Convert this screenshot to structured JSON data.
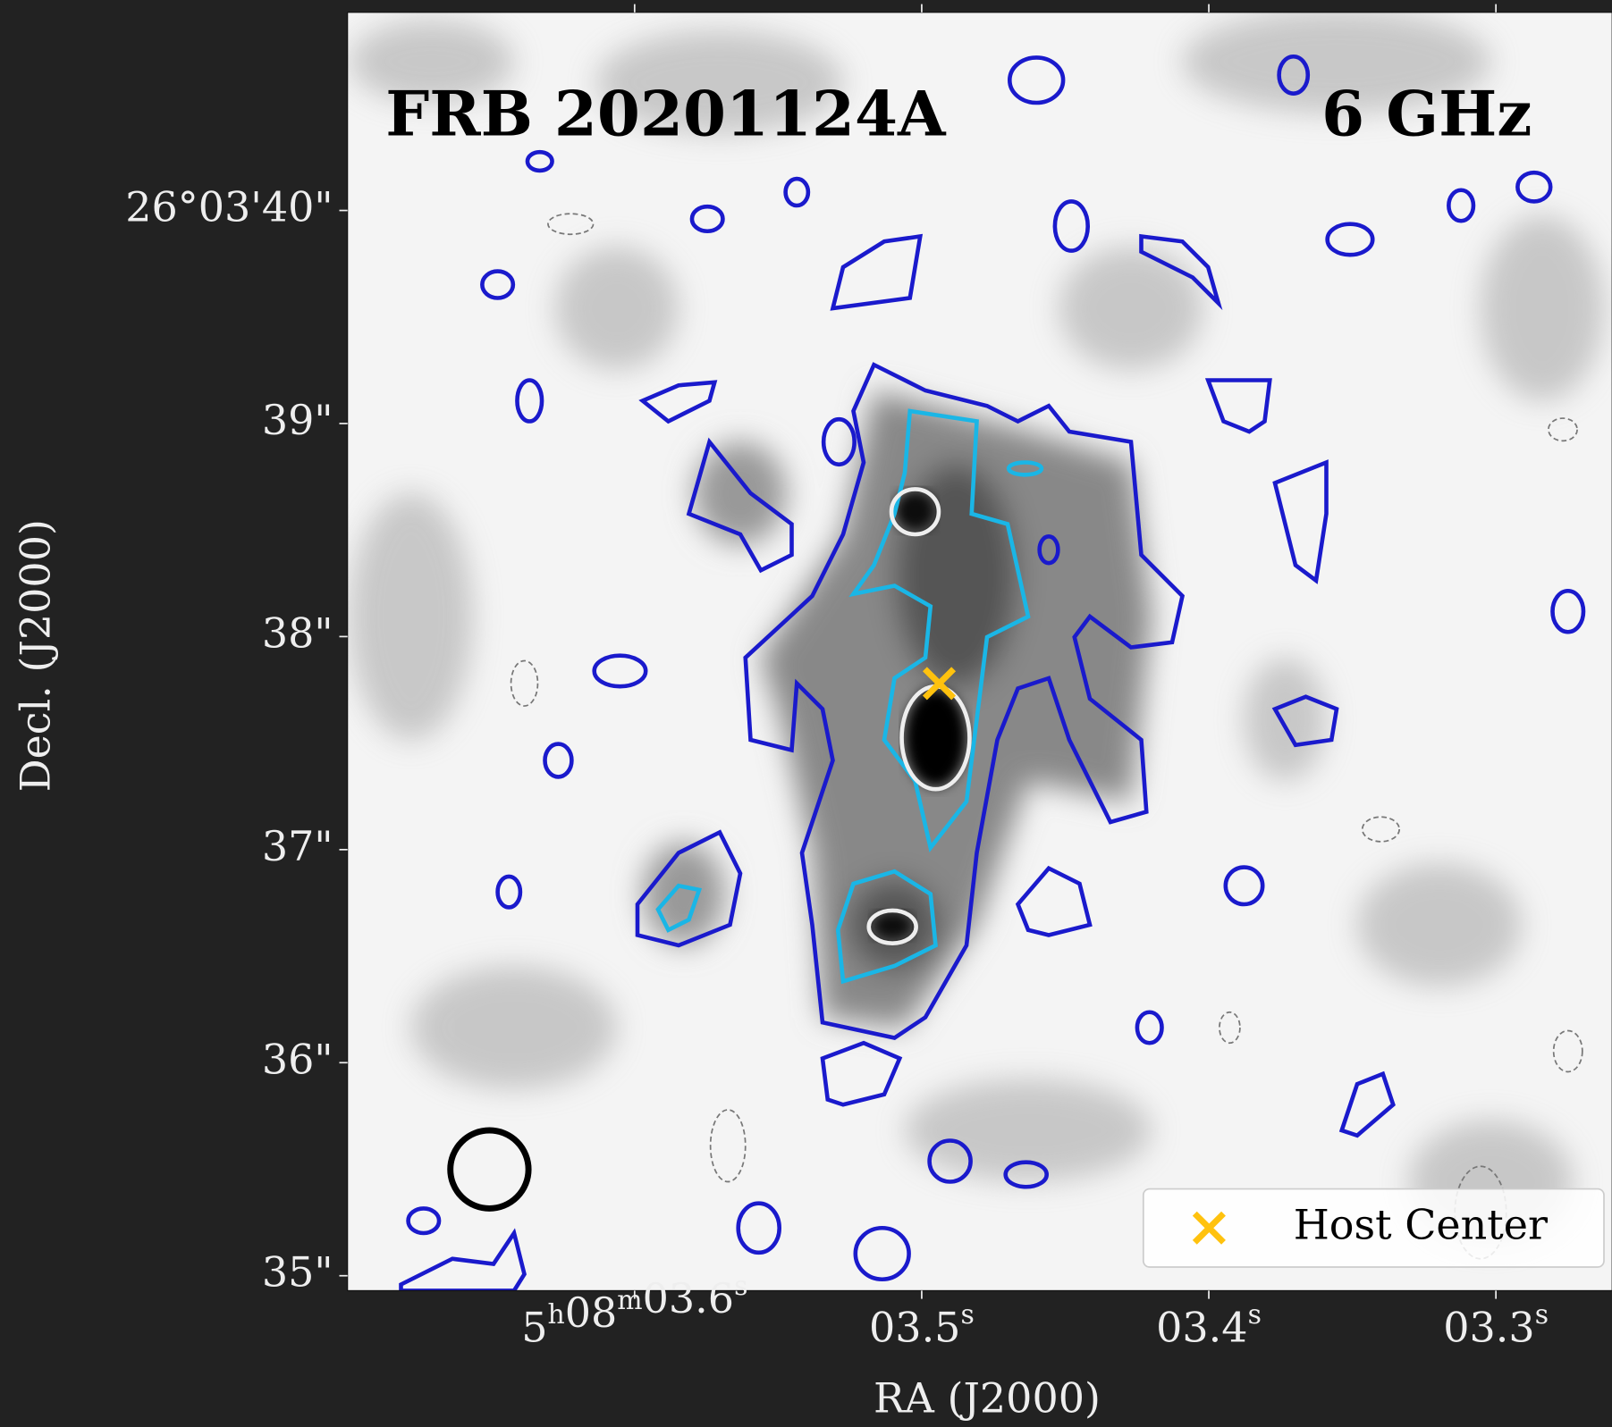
{
  "chart_data": {
    "type": "image",
    "title": "FRB 20201124A",
    "annotation": "6 GHz",
    "xlabel": "RA (J2000)",
    "ylabel": "Decl. (J2000)",
    "xlim": [
      3.7,
      3.2595
    ],
    "ylim": [
      34.93,
      40.93
    ],
    "xticks": [
      {
        "value": 3.6,
        "label": "5h08m03.6s"
      },
      {
        "value": 3.5,
        "label": "03.5s"
      },
      {
        "value": 3.4,
        "label": "03.4s"
      },
      {
        "value": 3.3,
        "label": "03.3s"
      }
    ],
    "yticks": [
      {
        "value": 40,
        "label": "26°03'40\""
      },
      {
        "value": 39,
        "label": "39\""
      },
      {
        "value": 38,
        "label": "38\""
      },
      {
        "value": 37,
        "label": "37\""
      },
      {
        "value": 36,
        "label": "36\""
      },
      {
        "value": 35,
        "label": "35\""
      }
    ],
    "series": [
      {
        "name": "Host Center",
        "color": "#ffc20e",
        "marker": "x",
        "x": [
          3.4939
        ],
        "y": [
          37.78
        ]
      }
    ],
    "legend": "lower right"
  }
}
